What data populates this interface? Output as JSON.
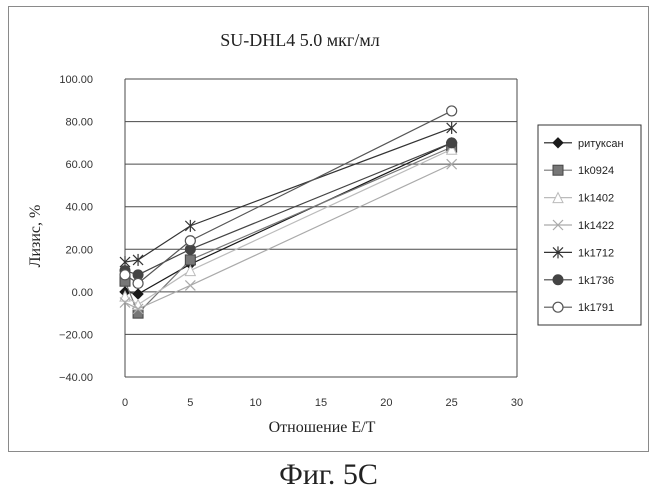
{
  "chart_data": {
    "type": "line",
    "title": "SU-DHL4    5.0 мкг/мл",
    "xlabel": "Отношение E/T",
    "ylabel": "Лизис, %",
    "xlim": [
      0,
      30
    ],
    "ylim": [
      -40,
      100
    ],
    "x_ticks": [
      "0",
      "5",
      "10",
      "15",
      "20",
      "25",
      "30"
    ],
    "y_ticks": [
      "-40.00",
      "-20.00",
      "0.00",
      "20.00",
      "40.00",
      "60.00",
      "80.00",
      "100.00"
    ],
    "grid": "horizontal",
    "legend_position": "right",
    "x": [
      0,
      1,
      5,
      25
    ],
    "series": [
      {
        "name": "ритуксан",
        "marker": "diamond-filled",
        "color": "#1a1a1a",
        "values": [
          0,
          -1,
          13,
          70
        ]
      },
      {
        "name": "1k0924",
        "marker": "square-filled",
        "color": "#777777",
        "values": [
          5,
          -10,
          15,
          68
        ]
      },
      {
        "name": "1k1402",
        "marker": "triangle-open",
        "color": "#bbbbbb",
        "values": [
          -2,
          -6,
          10,
          67
        ]
      },
      {
        "name": "1k1422",
        "marker": "x",
        "color": "#aaaaaa",
        "values": [
          -5,
          -8,
          3,
          60
        ]
      },
      {
        "name": "1k1712",
        "marker": "star",
        "color": "#333333",
        "values": [
          14,
          15,
          31,
          77
        ]
      },
      {
        "name": "1k1736",
        "marker": "circle-filled",
        "color": "#444444",
        "values": [
          10,
          8,
          20,
          70
        ]
      },
      {
        "name": "1k1791",
        "marker": "circle-open",
        "color": "#555555",
        "values": [
          8,
          4,
          24,
          85
        ]
      }
    ]
  },
  "caption": "Фиг. 5С"
}
